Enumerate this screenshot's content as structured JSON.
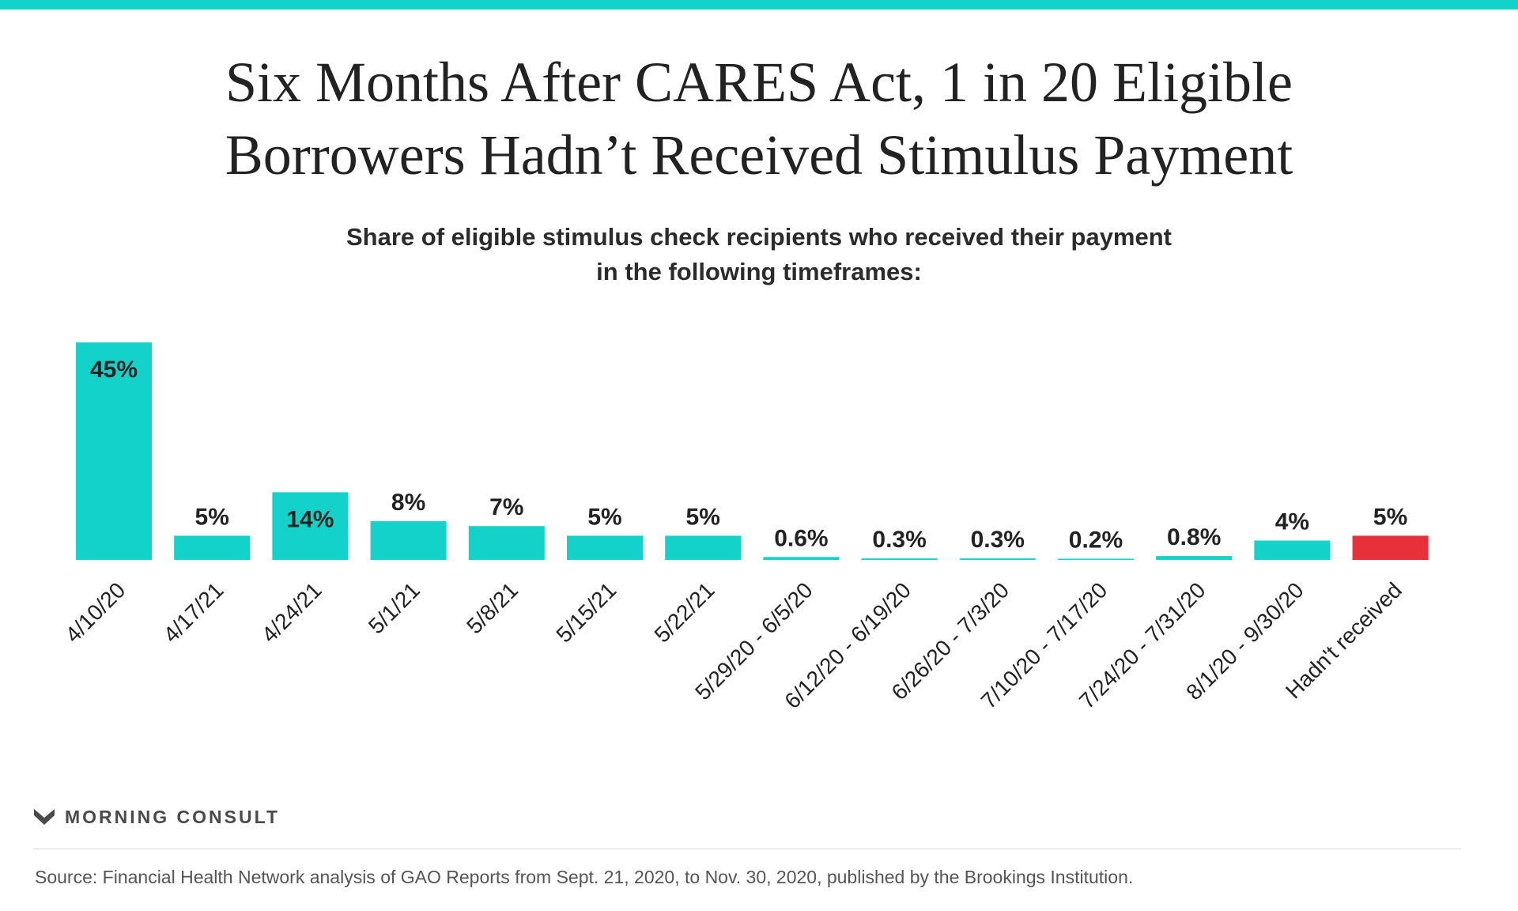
{
  "colors": {
    "accent": "#12d2c9",
    "highlight": "#e8303a",
    "text": "#222222"
  },
  "header": {
    "title_line1": "Six Months After CARES Act, 1 in 20 Eligible",
    "title_line2": "Borrowers Hadn’t Received Stimulus Payment",
    "subtitle_line1": "Share of eligible stimulus check recipients who received their payment",
    "subtitle_line2": "in the following timeframes:"
  },
  "chart_data": {
    "type": "bar",
    "title": "Six Months After CARES Act, 1 in 20 Eligible Borrowers Hadn’t Received Stimulus Payment",
    "subtitle": "Share of eligible stimulus check recipients who received their payment in the following timeframes:",
    "categories": [
      "4/10/20",
      "4/17/21",
      "4/24/21",
      "5/1/21",
      "5/8/21",
      "5/15/21",
      "5/22/21",
      "5/29/20 - 6/5/20",
      "6/12/20 - 6/19/20",
      "6/26/20 - 7/3/20",
      "7/10/20 - 7/17/20",
      "7/24/20 - 7/31/20",
      "8/1/20 - 9/30/20",
      "Hadn't received"
    ],
    "values": [
      45,
      5,
      14,
      8,
      7,
      5,
      5,
      0.6,
      0.3,
      0.3,
      0.2,
      0.8,
      4,
      5
    ],
    "labels": [
      "45%",
      "5%",
      "14%",
      "8%",
      "7%",
      "5%",
      "5%",
      "0.6%",
      "0.3%",
      "0.3%",
      "0.2%",
      "0.8%",
      "4%",
      "5%"
    ],
    "bar_colors": [
      "#12d2c9",
      "#12d2c9",
      "#12d2c9",
      "#12d2c9",
      "#12d2c9",
      "#12d2c9",
      "#12d2c9",
      "#12d2c9",
      "#12d2c9",
      "#12d2c9",
      "#12d2c9",
      "#12d2c9",
      "#12d2c9",
      "#e8303a"
    ],
    "inside_label": [
      true,
      false,
      true,
      false,
      false,
      false,
      false,
      false,
      false,
      false,
      false,
      false,
      false,
      false
    ],
    "xlabel": "",
    "ylabel": "",
    "ylim": [
      0,
      45
    ],
    "grid": false,
    "legend": "none"
  },
  "footer": {
    "logo_text": "MORNING CONSULT",
    "source": "Source: Financial Health Network analysis of GAO Reports from Sept. 21, 2020, to Nov. 30, 2020, published by the Brookings Institution."
  }
}
